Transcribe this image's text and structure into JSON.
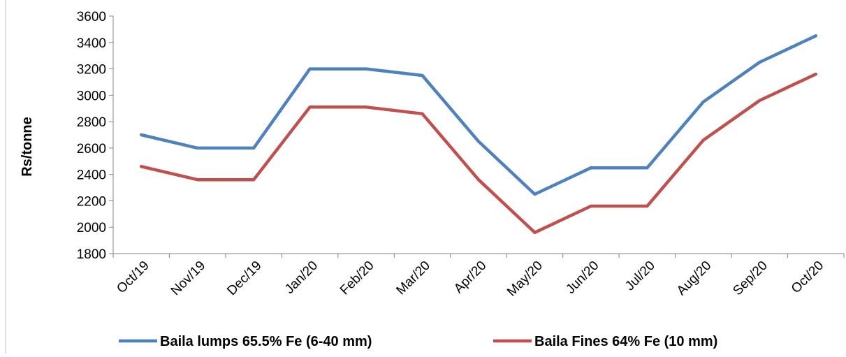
{
  "chart_data": {
    "type": "line",
    "title": "",
    "xlabel": "",
    "ylabel": "Rs/tonne",
    "categories": [
      "Oct/19",
      "Nov/19",
      "Dec/19",
      "Jan/20",
      "Feb/20",
      "Mar/20",
      "Apr/20",
      "May/20",
      "Jun/20",
      "Jul/20",
      "Aug/20",
      "Sep/20",
      "Oct/20"
    ],
    "ylim": [
      1800,
      3600
    ],
    "yticks": [
      "1800",
      "2000",
      "2200",
      "2400",
      "2600",
      "2800",
      "3000",
      "3200",
      "3400",
      "3600"
    ],
    "grid": false,
    "legend_position": "bottom",
    "series": [
      {
        "name": "Baila lumps 65.5% Fe (6-40 mm)",
        "color": "#4F81BD",
        "values": [
          2700,
          2600,
          2600,
          3200,
          3200,
          3150,
          2650,
          2250,
          2450,
          2450,
          2950,
          3250,
          3450
        ]
      },
      {
        "name": "Baila Fines 64% Fe (10 mm)",
        "color": "#C0504D",
        "values": [
          2460,
          2360,
          2360,
          2910,
          2910,
          2860,
          2360,
          1960,
          2160,
          2160,
          2660,
          2960,
          3160
        ]
      }
    ]
  }
}
